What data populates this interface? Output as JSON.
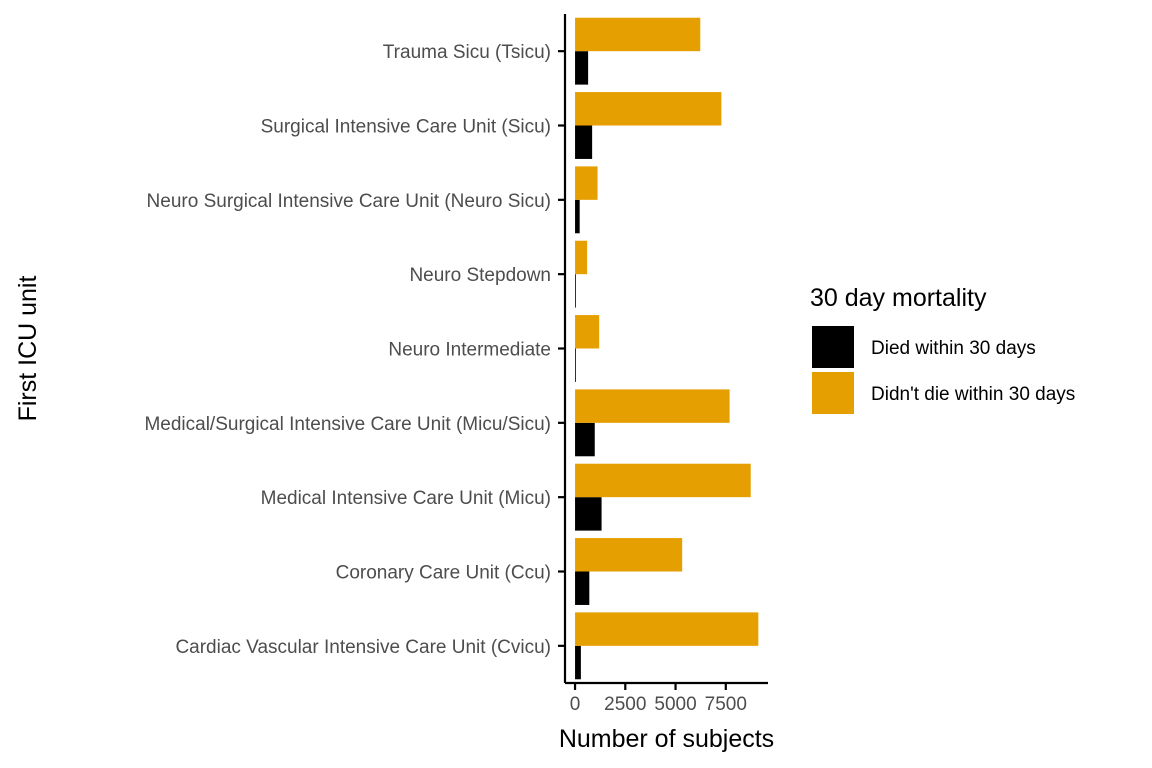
{
  "chart_data": {
    "type": "bar",
    "orientation": "horizontal",
    "categories": [
      "Cardiac Vascular Intensive Care Unit (Cvicu)",
      "Coronary Care Unit (Ccu)",
      "Medical Intensive Care Unit (Micu)",
      "Medical/Surgical Intensive Care Unit (Micu/Sicu)",
      "Neuro Intermediate",
      "Neuro Stepdown",
      "Neuro Surgical Intensive Care Unit (Neuro Sicu)",
      "Surgical Intensive Care Unit (Sicu)",
      "Trauma Sicu (Tsicu)"
    ],
    "series": [
      {
        "name": "Died within 30 days",
        "color": "#000000",
        "values": [
          290,
          710,
          1320,
          980,
          40,
          20,
          230,
          850,
          650
        ]
      },
      {
        "name": "Didn't die within 30 days",
        "color": "#E69F00",
        "values": [
          9120,
          5330,
          8740,
          7690,
          1200,
          600,
          1120,
          7280,
          6230
        ]
      }
    ],
    "xlabel": "Number of subjects",
    "ylabel": "First ICU unit",
    "x_ticks": [
      0,
      2500,
      5000,
      7500
    ],
    "x_tick_labels": [
      "0",
      "2500",
      "5000",
      "7500"
    ],
    "xlim": [
      -500,
      9600
    ],
    "grid": false,
    "legend": {
      "title": "30 day mortality",
      "position": "right"
    }
  }
}
